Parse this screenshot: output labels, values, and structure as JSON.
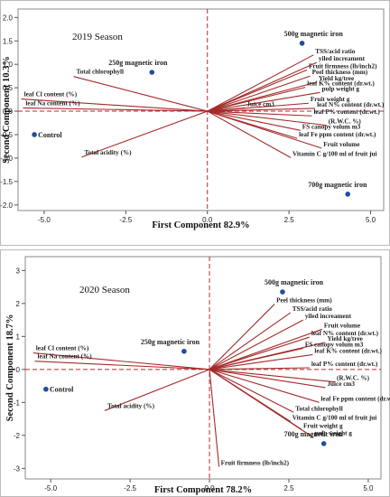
{
  "chart_data": [
    {
      "type": "scatter",
      "title": "2019 Season",
      "xlabel": "First Component 82.9%",
      "ylabel": "Second Component 10.3%",
      "xlim": [
        -5.8,
        5.4
      ],
      "ylim": [
        -2.12,
        2.18
      ],
      "xticks": [
        -5.0,
        -2.5,
        0.0,
        2.5,
        5.0
      ],
      "xtick_labels": [
        "-5.0",
        "-2.5",
        "0.0",
        "2.5",
        "5.0"
      ],
      "yticks": [
        2.0,
        1.5,
        1.0,
        0.5,
        0.0,
        -0.5,
        -1.0,
        -1.5,
        -2.0
      ],
      "ytick_labels": [
        "2.0",
        "1.5",
        "1.0",
        "0.5",
        "0.0",
        "-0.5",
        "-1.0",
        "-1.5",
        "-2.0"
      ],
      "observations": [
        {
          "label": "500g magnetic iron",
          "x": 2.9,
          "y": 1.45
        },
        {
          "label": "250g magnetic iron",
          "x": -1.7,
          "y": 0.83
        },
        {
          "label": "Control",
          "x": -5.3,
          "y": -0.5
        },
        {
          "label": "700g magnetic iron",
          "x": 4.3,
          "y": -1.77
        }
      ],
      "loadings": [
        {
          "label": "TSS/acid ratio",
          "x": 3.25,
          "y": 1.2
        },
        {
          "label": "yiled increament",
          "x": 3.35,
          "y": 1.04
        },
        {
          "label": "Fruit firmness (lb/inch2)",
          "x": 3.05,
          "y": 0.88
        },
        {
          "label": "Peel thickness (mm)",
          "x": 3.15,
          "y": 0.75
        },
        {
          "label": "Yield kg/tree",
          "x": 3.35,
          "y": 0.62
        },
        {
          "label": "leaf K% content (dr.wt.)",
          "x": 3.0,
          "y": 0.51
        },
        {
          "label": "pulp weight g",
          "x": 3.45,
          "y": 0.4
        },
        {
          "label": "Fruit weight g",
          "x": 3.1,
          "y": 0.17
        },
        {
          "label": "leaf N% content (dr.wt.)",
          "x": 3.3,
          "y": 0.06
        },
        {
          "label": "Juice cm3",
          "x": 1.15,
          "y": 0.07
        },
        {
          "label": "leaf P% content (dr.wt.)",
          "x": 3.2,
          "y": -0.1
        },
        {
          "label": "(R.W.C. %)",
          "x": 3.65,
          "y": -0.3
        },
        {
          "label": "FS canopy volum m3",
          "x": 2.85,
          "y": -0.41
        },
        {
          "label": "leaf Fe ppm content (dr.wt.)",
          "x": 2.75,
          "y": -0.58
        },
        {
          "label": "Fruit volume",
          "x": 3.5,
          "y": -0.79
        },
        {
          "label": "Vitamin C g/100 ml of fruit jui",
          "x": 2.55,
          "y": -0.99
        },
        {
          "label": "Total chlorophyll",
          "x": -4.1,
          "y": 0.74
        },
        {
          "label": "leaf Cl content (%)",
          "x": -5.7,
          "y": 0.26
        },
        {
          "label": "leaf Na content (%)",
          "x": -5.65,
          "y": 0.07
        },
        {
          "label": "Total acidity (%)",
          "x": -3.85,
          "y": -0.98
        }
      ]
    },
    {
      "type": "scatter",
      "title": "2020 Season",
      "xlabel": "First Component 78.2%",
      "ylabel": "Second Component 18.7%",
      "xlim": [
        -5.8,
        5.4
      ],
      "ylim": [
        -3.32,
        3.42
      ],
      "xticks": [
        -5.0,
        -2.5,
        0.0,
        2.5,
        5.0
      ],
      "xtick_labels": [
        "-5.0",
        "-2.5",
        "0.0",
        "2.5",
        "5.0"
      ],
      "yticks": [
        3,
        2,
        1,
        0,
        -1,
        -2,
        -3
      ],
      "ytick_labels": [
        "3",
        "2",
        "1",
        "0",
        "-1",
        "-2",
        "-3"
      ],
      "observations": [
        {
          "label": "500g magnetic iron",
          "x": 2.3,
          "y": 2.35
        },
        {
          "label": "250g magnetic iron",
          "x": -0.8,
          "y": 0.55
        },
        {
          "label": "Control",
          "x": -5.15,
          "y": -0.6
        },
        {
          "label": "700g magnetic iron",
          "x": 3.6,
          "y": -2.25
        }
      ],
      "loadings": [
        {
          "label": "Peel thickness (mm)",
          "x": 2.05,
          "y": 1.98
        },
        {
          "label": "TSS/acid ratio",
          "x": 2.55,
          "y": 1.72
        },
        {
          "label": "yiled increament",
          "x": 2.95,
          "y": 1.5
        },
        {
          "label": "Fruit volume",
          "x": 3.55,
          "y": 1.22
        },
        {
          "label": "leaf N% content (dr.wt.)",
          "x": 3.15,
          "y": 0.98
        },
        {
          "label": "Yield kg/tree",
          "x": 3.65,
          "y": 0.82
        },
        {
          "label": "FS canopy volum m3",
          "x": 2.95,
          "y": 0.64
        },
        {
          "label": "leaf K% content (dr.wt.)",
          "x": 3.25,
          "y": 0.45
        },
        {
          "label": "leaf P% content (dr.wt.)",
          "x": 3.15,
          "y": 0.05
        },
        {
          "label": "(R.W.C. %)",
          "x": 3.95,
          "y": -0.38
        },
        {
          "label": "Juice cm3",
          "x": 3.65,
          "y": -0.55
        },
        {
          "label": "leaf Fe ppm content (dr.wt.)",
          "x": 3.45,
          "y": -1.0
        },
        {
          "label": "Total chlorophyll",
          "x": 2.65,
          "y": -1.3
        },
        {
          "label": "Vitamin C g/100 ml of fruit jui",
          "x": 2.55,
          "y": -1.58
        },
        {
          "label": "Fruit weight g",
          "x": 2.9,
          "y": -1.82
        },
        {
          "label": "pulp weight g",
          "x": 3.25,
          "y": -2.05
        },
        {
          "label": "Fruit firmness (lb/inch2)",
          "x": 0.3,
          "y": -2.95
        },
        {
          "label": "leaf Cl content (%)",
          "x": -5.55,
          "y": 0.5
        },
        {
          "label": "leaf Na content (%)",
          "x": -5.5,
          "y": 0.25
        },
        {
          "label": "Total acidity (%)",
          "x": -3.3,
          "y": -1.25
        }
      ]
    }
  ],
  "colors": {
    "loading": "#a52a2a",
    "point": "#1f4e9c",
    "refline": "#c0262d",
    "frame": "#888888"
  }
}
